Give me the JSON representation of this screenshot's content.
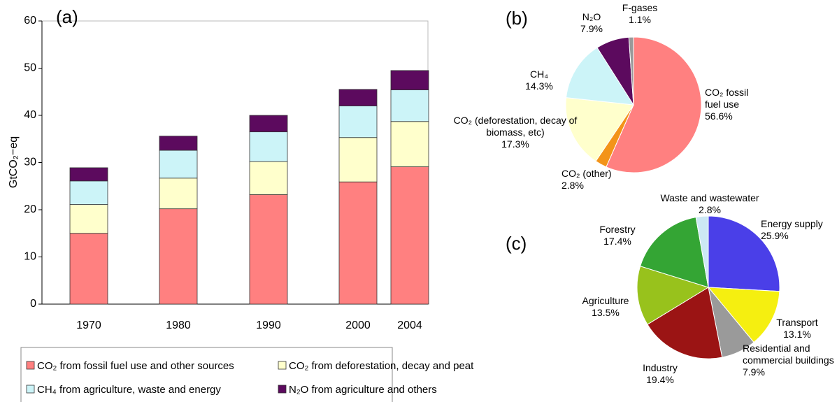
{
  "chart_data": [
    {
      "type": "bar",
      "stacked": true,
      "title": "(a)",
      "y_label": "GtCO₂−eq",
      "categories": [
        "1970",
        "1980",
        "1990",
        "2000",
        "2004"
      ],
      "series": [
        {
          "name": "CO₂ from fossil fuel use and other sources",
          "color": "#ff8080",
          "values": [
            15.0,
            20.2,
            23.2,
            25.9,
            29.1
          ]
        },
        {
          "name": "CO₂ from deforestation, decay and peat",
          "color": "#ffffcc",
          "values": [
            6.1,
            6.5,
            7.0,
            9.4,
            9.6
          ]
        },
        {
          "name": "CH₄ from agriculture, waste and energy",
          "color": "#ccf4f8",
          "values": [
            5.0,
            5.9,
            6.3,
            6.7,
            6.7
          ]
        },
        {
          "name": "N₂O from agriculture and others",
          "color": "#5c0a5e",
          "values": [
            2.8,
            3.0,
            3.5,
            3.5,
            4.1
          ]
        }
      ],
      "ylim": [
        0,
        60
      ],
      "yticks": [
        0,
        10,
        20,
        30,
        40,
        50,
        60
      ],
      "grid": false,
      "legend": "bottom"
    },
    {
      "type": "pie",
      "title": "(b)",
      "labels": [
        "CO₂ fossil fuel use",
        "CO₂ (other)",
        "CO₂ (deforestation, decay of biomass, etc)",
        "CH₄",
        "N₂O",
        "F-gases"
      ],
      "values": [
        56.6,
        2.8,
        17.3,
        14.3,
        7.9,
        1.1
      ],
      "value_labels": [
        "56.6%",
        "2.8%",
        "17.3%",
        "14.3%",
        "7.9%",
        "1.1%"
      ],
      "colors": [
        "#ff8080",
        "#f39419",
        "#ffffcc",
        "#ccf4f8",
        "#5c0a5e",
        "#999999"
      ]
    },
    {
      "type": "pie",
      "title": "(c)",
      "labels": [
        "Energy supply",
        "Transport",
        "Residential and commercial buildings",
        "Industry",
        "Agriculture",
        "Forestry",
        "Waste and wastewater"
      ],
      "values": [
        25.9,
        13.1,
        7.9,
        19.4,
        13.5,
        17.4,
        2.8
      ],
      "value_labels": [
        "25.9%",
        "13.1%",
        "7.9%",
        "19.4%",
        "13.5%",
        "17.4%",
        "2.8%"
      ],
      "colors": [
        "#4a3fe8",
        "#f5ef10",
        "#9a9a9a",
        "#9b1414",
        "#98c21c",
        "#34a534",
        "#cce8f4"
      ]
    }
  ]
}
